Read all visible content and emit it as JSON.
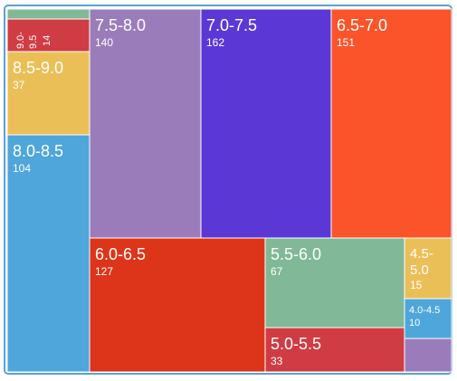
{
  "chart_data": {
    "type": "treemap",
    "title": "",
    "cells": [
      {
        "name": "7.5-8.0",
        "value": 140,
        "color": "#9b7cbb",
        "label_size": "large"
      },
      {
        "name": "7.0-7.5",
        "value": 162,
        "color": "#5b38d6",
        "label_size": "large"
      },
      {
        "name": "6.5-7.0",
        "value": 151,
        "color": "#fb542b",
        "label_size": "large"
      },
      {
        "name": "6.0-6.5",
        "value": 127,
        "color": "#dc3519",
        "label_size": "large"
      },
      {
        "name": "8.0-8.5",
        "value": 104,
        "color": "#4ea6db",
        "label_size": "large"
      },
      {
        "name": "5.5-6.0",
        "value": 67,
        "color": "#80b898",
        "label_size": "large"
      },
      {
        "name": "8.5-9.0",
        "value": 37,
        "color": "#ebbf58",
        "label_size": "large"
      },
      {
        "name": "5.0-5.5",
        "value": 33,
        "color": "#d03c43",
        "label_size": "large"
      },
      {
        "name": "4.5-5.0",
        "value": 15,
        "color": "#ebbf58",
        "label_size": "wrap",
        "name_lines": [
          "4.5-",
          "5.0"
        ]
      },
      {
        "name": "9.0-9.5",
        "value": 14,
        "color": "#d03c43",
        "label_size": "rotated",
        "name_lines": [
          "9.0-",
          "9.5"
        ]
      },
      {
        "name": "4.0-4.5",
        "value": 10,
        "color": "#4ea6db",
        "label_size": "small"
      },
      {
        "name": "",
        "value": null,
        "color": "#9b7cbb",
        "label_size": "none"
      },
      {
        "name": "",
        "value": null,
        "color": "#80b898",
        "label_size": "none"
      }
    ]
  }
}
